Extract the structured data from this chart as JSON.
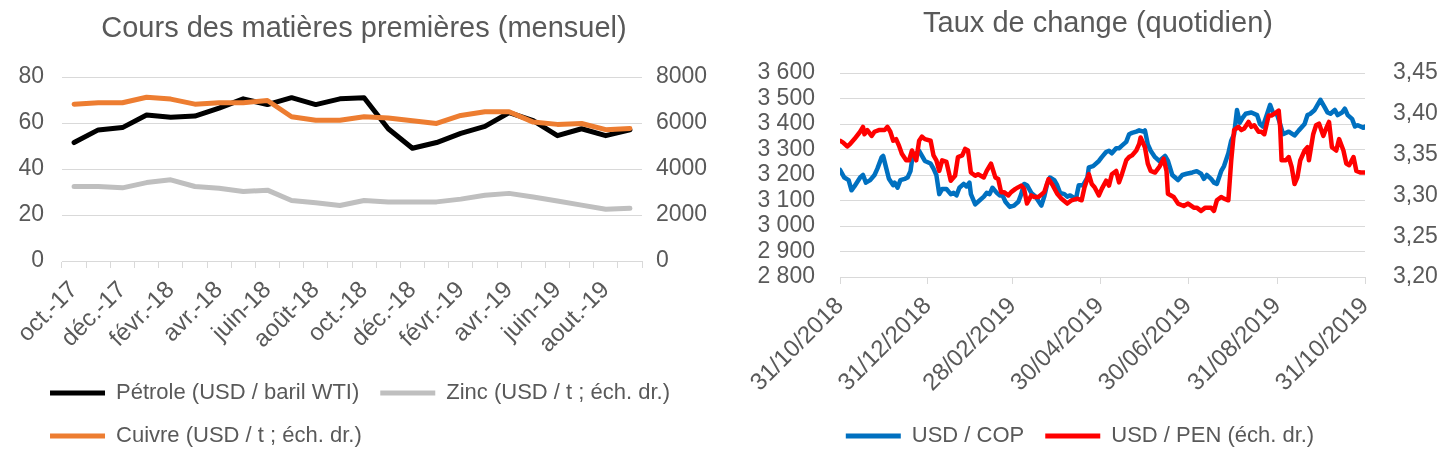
{
  "chart_data": [
    {
      "type": "line",
      "title": "Cours des matières premières (mensuel)",
      "categories": [
        "oct.-17",
        null,
        "déc.-17",
        null,
        "févr.-18",
        null,
        "avr.-18",
        null,
        "juin-18",
        null,
        "août-18",
        null,
        "oct.-18",
        null,
        "déc.-18",
        null,
        "févr.-19",
        null,
        "avr.-19",
        null,
        "juin-19",
        null,
        "aout.-19",
        null
      ],
      "series": [
        {
          "name": "Pétrole (USD / baril WTI)",
          "color": "#000000",
          "values": [
            51.5,
            57,
            58,
            63.5,
            62.5,
            63,
            66.5,
            70.5,
            68,
            71,
            68,
            70.5,
            71,
            57.5,
            49,
            51.5,
            55.5,
            58.5,
            64.5,
            61,
            54.5,
            57.5,
            54.5,
            57
          ]
        },
        {
          "name": "Zinc (USD / t ; éch. dr.)",
          "color": "#bfbfbf",
          "axis": "y2",
          "values": [
            3240,
            3240,
            3180,
            3410,
            3530,
            3240,
            3160,
            3020,
            3080,
            2630,
            2530,
            2410,
            2630,
            2570,
            2570,
            2570,
            2690,
            2860,
            2940,
            2780,
            2610,
            2430,
            2250,
            2290
          ]
        },
        {
          "name": "Cuivre (USD / t ; éch. dr.)",
          "color": "#ed7d31",
          "axis": "y2",
          "values": [
            6820,
            6880,
            6880,
            7120,
            7040,
            6820,
            6880,
            6880,
            6980,
            6270,
            6120,
            6120,
            6270,
            6220,
            6100,
            5980,
            6330,
            6490,
            6490,
            6040,
            5940,
            5980,
            5710,
            5760
          ]
        }
      ],
      "ylim": [
        0,
        80
      ],
      "yticks": [
        0,
        20,
        40,
        60,
        80
      ],
      "y2lim": [
        0,
        8000
      ],
      "y2ticks": [
        0,
        2000,
        4000,
        6000,
        8000
      ],
      "grid": "y",
      "legend": "bottom"
    },
    {
      "type": "line",
      "title": "Taux de change (quotidien)",
      "xlim": [
        "2018-10-31",
        "2019-10-31"
      ],
      "xticks": [
        {
          "value": "2018-10-31",
          "label": "31/10/2018"
        },
        {
          "value": "2018-12-31",
          "label": "31/12/2018"
        },
        {
          "value": "2019-02-28",
          "label": "28/02/2019"
        },
        {
          "value": "2019-04-30",
          "label": "30/04/2019"
        },
        {
          "value": "2019-06-30",
          "label": "30/06/2019"
        },
        {
          "value": "2019-08-31",
          "label": "31/08/2019"
        },
        {
          "value": "2019-10-31",
          "label": "31/10/2019"
        }
      ],
      "series": [
        {
          "name": "USD / COP",
          "color": "#0070c0",
          "x": [
            "2018-10-31",
            "2018-11-03",
            "2018-11-06",
            "2018-11-08",
            "2018-11-10",
            "2018-11-14",
            "2018-11-16",
            "2018-11-18",
            "2018-11-21",
            "2018-11-24",
            "2018-11-26",
            "2018-11-29",
            "2018-11-30",
            "2018-12-02",
            "2018-12-04",
            "2018-12-07",
            "2018-12-08",
            "2018-12-10",
            "2018-12-12",
            "2018-12-15",
            "2018-12-17",
            "2018-12-19",
            "2018-12-20",
            "2018-12-23",
            "2018-12-25",
            "2018-12-27",
            "2018-12-29",
            "2019-01-02",
            "2019-01-04",
            "2019-01-06",
            "2019-01-08",
            "2019-01-10",
            "2019-01-13",
            "2019-01-16",
            "2019-01-18",
            "2019-01-20",
            "2019-01-22",
            "2019-01-25",
            "2019-01-27",
            "2019-01-29",
            "2019-01-30",
            "2019-02-02",
            "2019-02-04",
            "2019-02-08",
            "2019-02-10",
            "2019-02-12",
            "2019-02-14",
            "2019-02-17",
            "2019-02-19",
            "2019-02-21",
            "2019-02-23",
            "2019-02-26",
            "2019-03-01",
            "2019-03-04",
            "2019-03-06",
            "2019-03-08",
            "2019-03-10",
            "2019-03-13",
            "2019-03-16",
            "2019-03-20",
            "2019-03-22",
            "2019-03-24",
            "2019-03-26",
            "2019-03-29",
            "2019-03-31",
            "2019-04-02",
            "2019-04-05",
            "2019-04-07",
            "2019-04-09",
            "2019-04-13",
            "2019-04-15",
            "2019-04-18",
            "2019-04-21",
            "2019-04-22",
            "2019-04-25",
            "2019-04-29",
            "2019-05-01",
            "2019-05-04",
            "2019-05-06",
            "2019-05-08",
            "2019-05-11",
            "2019-05-13",
            "2019-05-15",
            "2019-05-18",
            "2019-05-20",
            "2019-05-22",
            "2019-05-25",
            "2019-05-27",
            "2019-05-30",
            "2019-05-31",
            "2019-06-02",
            "2019-06-04",
            "2019-06-07",
            "2019-06-10",
            "2019-06-14",
            "2019-06-16",
            "2019-06-19",
            "2019-06-21",
            "2019-06-23",
            "2019-06-26",
            "2019-06-29",
            "2019-07-03",
            "2019-07-06",
            "2019-07-09",
            "2019-07-11",
            "2019-07-13",
            "2019-07-16",
            "2019-07-18",
            "2019-07-20",
            "2019-07-23",
            "2019-07-25",
            "2019-07-28",
            "2019-07-30",
            "2019-08-01",
            "2019-08-03",
            "2019-08-05",
            "2019-08-07",
            "2019-08-09",
            "2019-08-13",
            "2019-08-17",
            "2019-08-19",
            "2019-08-21",
            "2019-08-24",
            "2019-08-26",
            "2019-08-28",
            "2019-08-31",
            "2019-09-02",
            "2019-09-04",
            "2019-09-08",
            "2019-09-12",
            "2019-09-15",
            "2019-09-19",
            "2019-09-21",
            "2019-09-23",
            "2019-09-26",
            "2019-09-28",
            "2019-09-30",
            "2019-10-03",
            "2019-10-05",
            "2019-10-07",
            "2019-10-10",
            "2019-10-12",
            "2019-10-15",
            "2019-10-17",
            "2019-10-19",
            "2019-10-22",
            "2019-10-24",
            "2019-10-26",
            "2019-10-30",
            "2019-10-31"
          ],
          "values": [
            3220,
            3190,
            3180,
            3140,
            3155,
            3190,
            3200,
            3170,
            3180,
            3200,
            3225,
            3270,
            3275,
            3230,
            3185,
            3160,
            3170,
            3150,
            3180,
            3185,
            3190,
            3215,
            3255,
            3285,
            3295,
            3275,
            3255,
            3245,
            3225,
            3200,
            3125,
            3145,
            3145,
            3125,
            3130,
            3120,
            3150,
            3165,
            3155,
            3170,
            3125,
            3085,
            3095,
            3115,
            3130,
            3125,
            3150,
            3130,
            3120,
            3120,
            3095,
            3075,
            3080,
            3095,
            3125,
            3165,
            3160,
            3130,
            3115,
            3080,
            3115,
            3165,
            3190,
            3180,
            3160,
            3130,
            3125,
            3115,
            3120,
            3105,
            3160,
            3160,
            3190,
            3230,
            3235,
            3255,
            3270,
            3290,
            3295,
            3285,
            3305,
            3305,
            3315,
            3330,
            3360,
            3365,
            3370,
            3375,
            3370,
            3375,
            3320,
            3295,
            3270,
            3255,
            3275,
            3255,
            3200,
            3190,
            3180,
            3200,
            3205,
            3210,
            3215,
            3205,
            3185,
            3200,
            3185,
            3170,
            3165,
            3215,
            3235,
            3285,
            3335,
            3360,
            3455,
            3405,
            3425,
            3440,
            3445,
            3435,
            3400,
            3390,
            3440,
            3475,
            3445,
            3435,
            3400,
            3360,
            3370,
            3355,
            3375,
            3400,
            3435,
            3440,
            3455,
            3475,
            3495,
            3465,
            3445,
            3440,
            3455,
            3435,
            3445,
            3460,
            3435,
            3420,
            3390,
            3395,
            3385,
            3390
          ]
        },
        {
          "name": "USD / PEN (éch. dr.)",
          "color": "#ff0000",
          "axis": "y2",
          "x": [
            "2018-10-31",
            "2018-11-02",
            "2018-11-05",
            "2018-11-07",
            "2018-11-10",
            "2018-11-14",
            "2018-11-16",
            "2018-11-17",
            "2018-11-19",
            "2018-11-22",
            "2018-11-24",
            "2018-11-27",
            "2018-12-01",
            "2018-12-03",
            "2018-12-05",
            "2018-12-07",
            "2018-12-09",
            "2018-12-11",
            "2018-12-13",
            "2018-12-16",
            "2018-12-18",
            "2018-12-20",
            "2018-12-23",
            "2018-12-25",
            "2018-12-27",
            "2018-12-29",
            "2019-01-02",
            "2019-01-04",
            "2019-01-06",
            "2019-01-08",
            "2019-01-10",
            "2019-01-13",
            "2019-01-16",
            "2019-01-19",
            "2019-01-21",
            "2019-01-24",
            "2019-01-26",
            "2019-01-28",
            "2019-01-30",
            "2019-02-02",
            "2019-02-04",
            "2019-02-08",
            "2019-02-10",
            "2019-02-13",
            "2019-02-16",
            "2019-02-18",
            "2019-02-20",
            "2019-02-22",
            "2019-02-25",
            "2019-02-27",
            "2019-03-02",
            "2019-03-06",
            "2019-03-08",
            "2019-03-10",
            "2019-03-13",
            "2019-03-15",
            "2019-03-18",
            "2019-03-22",
            "2019-03-25",
            "2019-03-28",
            "2019-03-31",
            "2019-04-03",
            "2019-04-07",
            "2019-04-10",
            "2019-04-14",
            "2019-04-17",
            "2019-04-19",
            "2019-04-22",
            "2019-04-24",
            "2019-04-26",
            "2019-04-29",
            "2019-05-01",
            "2019-05-04",
            "2019-05-06",
            "2019-05-08",
            "2019-05-11",
            "2019-05-13",
            "2019-05-15",
            "2019-05-18",
            "2019-05-20",
            "2019-05-22",
            "2019-05-25",
            "2019-05-27",
            "2019-05-28",
            "2019-05-31",
            "2019-06-02",
            "2019-06-04",
            "2019-06-07",
            "2019-06-10",
            "2019-06-13",
            "2019-06-15",
            "2019-06-16",
            "2019-06-20",
            "2019-06-23",
            "2019-06-27",
            "2019-06-30",
            "2019-07-04",
            "2019-07-06",
            "2019-07-09",
            "2019-07-12",
            "2019-07-16",
            "2019-07-18",
            "2019-07-20",
            "2019-07-23",
            "2019-07-25",
            "2019-07-28",
            "2019-07-30",
            "2019-08-01",
            "2019-08-04",
            "2019-08-06",
            "2019-08-08",
            "2019-08-11",
            "2019-08-13",
            "2019-08-15",
            "2019-08-18",
            "2019-08-20",
            "2019-08-22",
            "2019-08-25",
            "2019-08-27",
            "2019-08-29",
            "2019-09-01",
            "2019-09-02",
            "2019-09-03",
            "2019-09-06",
            "2019-09-08",
            "2019-09-10",
            "2019-09-12",
            "2019-09-14",
            "2019-09-16",
            "2019-09-19",
            "2019-09-21",
            "2019-09-22",
            "2019-09-25",
            "2019-09-27",
            "2019-09-29",
            "2019-10-02",
            "2019-10-04",
            "2019-10-06",
            "2019-10-08",
            "2019-10-11",
            "2019-10-13",
            "2019-10-16",
            "2019-10-18",
            "2019-10-20",
            "2019-10-23",
            "2019-10-25",
            "2019-10-28",
            "2019-10-31"
          ],
          "values": [
            3.367,
            3.365,
            3.36,
            3.363,
            3.369,
            3.378,
            3.384,
            3.375,
            3.38,
            3.373,
            3.378,
            3.38,
            3.38,
            3.384,
            3.378,
            3.367,
            3.369,
            3.361,
            3.351,
            3.343,
            3.343,
            3.355,
            3.343,
            3.367,
            3.372,
            3.369,
            3.367,
            3.349,
            3.343,
            3.33,
            3.343,
            3.341,
            3.318,
            3.324,
            3.347,
            3.349,
            3.357,
            3.355,
            3.328,
            3.324,
            3.326,
            3.322,
            3.33,
            3.339,
            3.322,
            3.32,
            3.304,
            3.304,
            3.3,
            3.304,
            3.308,
            3.312,
            3.308,
            3.29,
            3.3,
            3.298,
            3.298,
            3.304,
            3.32,
            3.312,
            3.302,
            3.296,
            3.29,
            3.294,
            3.296,
            3.294,
            3.31,
            3.326,
            3.314,
            3.31,
            3.3,
            3.308,
            3.318,
            3.312,
            3.326,
            3.33,
            3.316,
            3.326,
            3.343,
            3.347,
            3.349,
            3.355,
            3.363,
            3.371,
            3.359,
            3.339,
            3.33,
            3.328,
            3.335,
            3.345,
            3.33,
            3.302,
            3.298,
            3.29,
            3.287,
            3.29,
            3.285,
            3.285,
            3.281,
            3.285,
            3.285,
            3.281,
            3.294,
            3.298,
            3.296,
            3.294,
            3.343,
            3.38,
            3.384,
            3.38,
            3.382,
            3.39,
            3.384,
            3.386,
            3.378,
            3.378,
            3.375,
            3.398,
            3.398,
            3.4,
            3.404,
            3.384,
            3.343,
            3.343,
            3.347,
            3.335,
            3.314,
            3.322,
            3.343,
            3.355,
            3.359,
            3.343,
            3.375,
            3.386,
            3.388,
            3.373,
            3.382,
            3.39,
            3.359,
            3.355,
            3.369,
            3.355,
            3.339,
            3.337,
            3.347,
            3.33,
            3.328,
            3.328
          ]
        }
      ],
      "ylim": [
        2800,
        3600
      ],
      "yticks": [
        {
          "value": 2800,
          "label": "2 800"
        },
        {
          "value": 2900,
          "label": "2 900"
        },
        {
          "value": 3000,
          "label": "3 000"
        },
        {
          "value": 3100,
          "label": "3 100"
        },
        {
          "value": 3200,
          "label": "3 200"
        },
        {
          "value": 3300,
          "label": "3 300"
        },
        {
          "value": 3400,
          "label": "3 400"
        },
        {
          "value": 3500,
          "label": "3 500"
        },
        {
          "value": 3600,
          "label": "3 600"
        }
      ],
      "y2lim": [
        3.2,
        3.45
      ],
      "y2ticks": [
        {
          "value": 3.2,
          "label": "3,20"
        },
        {
          "value": 3.25,
          "label": "3,25"
        },
        {
          "value": 3.3,
          "label": "3,30"
        },
        {
          "value": 3.35,
          "label": "3,35"
        },
        {
          "value": 3.4,
          "label": "3,40"
        },
        {
          "value": 3.45,
          "label": "3,45"
        }
      ],
      "grid": "y",
      "legend": "bottom"
    }
  ]
}
